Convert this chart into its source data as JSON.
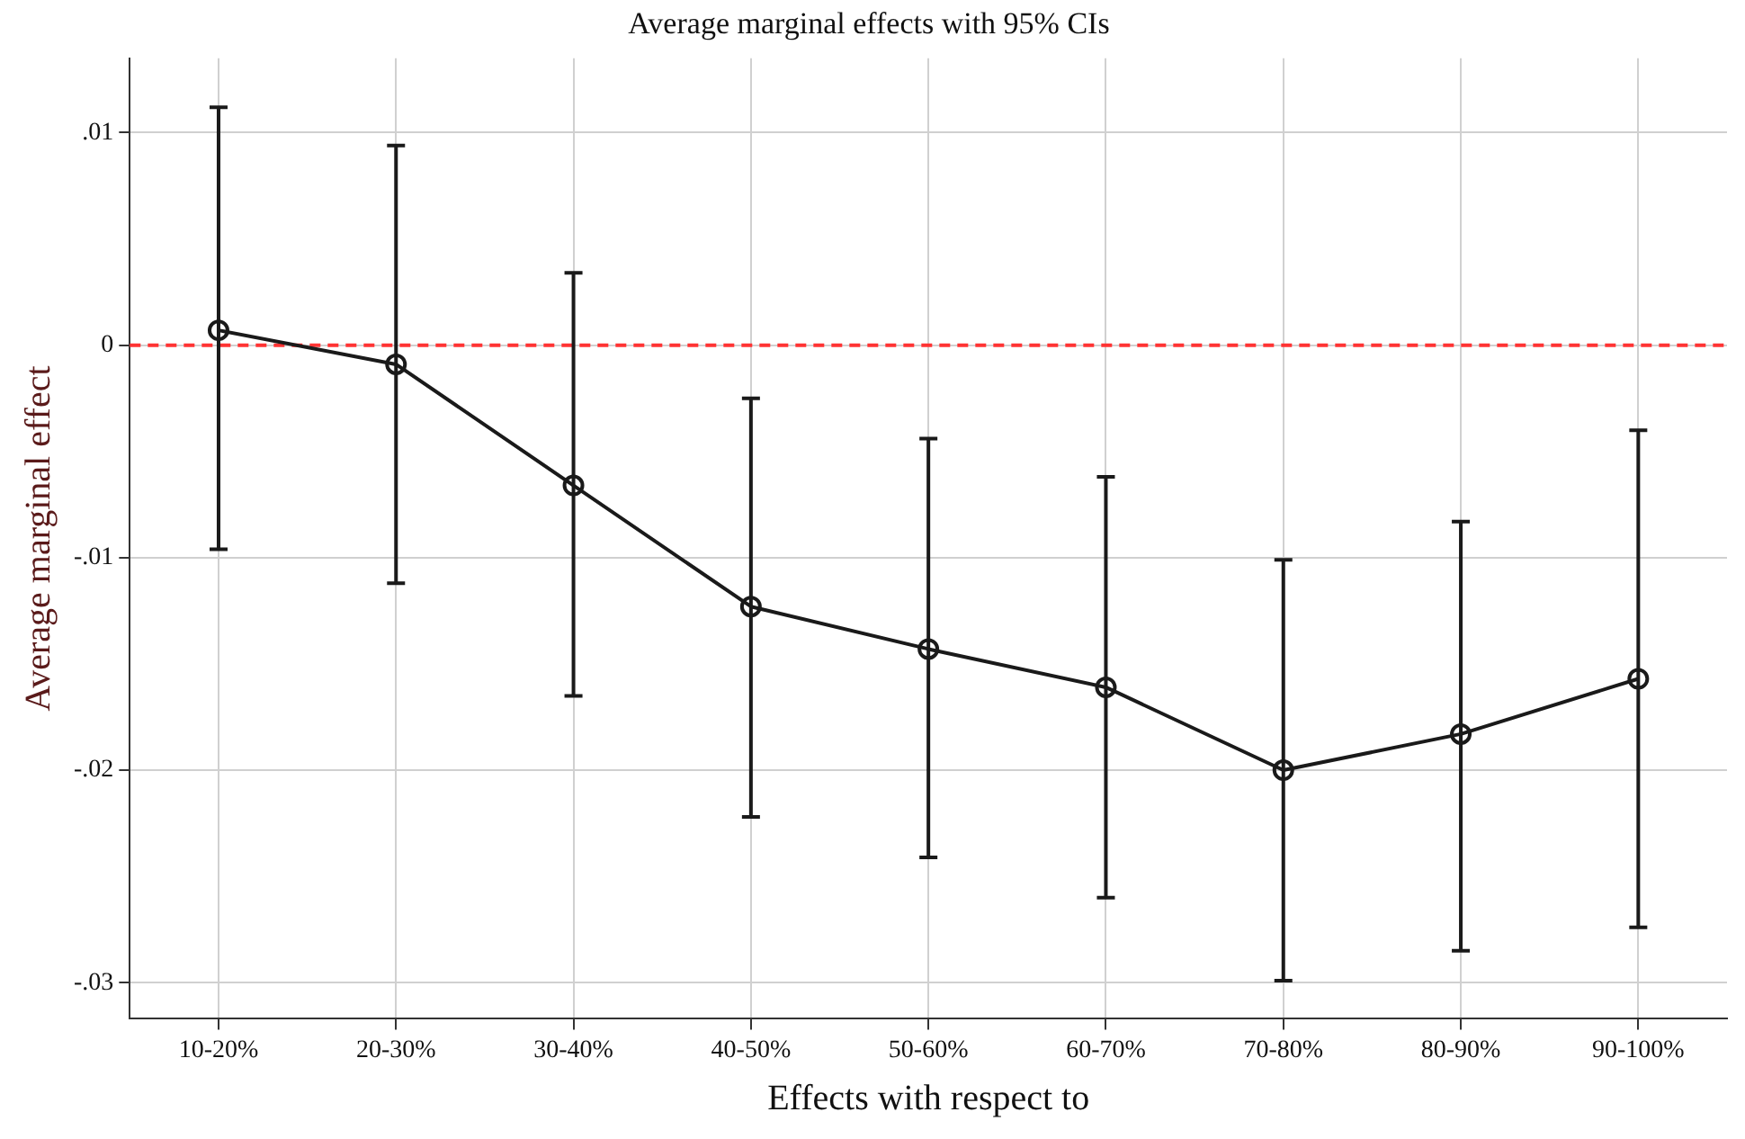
{
  "chart_data": {
    "type": "line",
    "title": "Average marginal effects with 95% CIs",
    "xlabel": "Effects with respect to",
    "ylabel": "Average marginal effect",
    "categories": [
      "10-20%",
      "20-30%",
      "30-40%",
      "40-50%",
      "50-60%",
      "60-70%",
      "70-80%",
      "80-90%",
      "90-100%"
    ],
    "series": [
      {
        "color": "#1a1a1a",
        "values": [
          0.0007,
          -0.0009,
          -0.0066,
          -0.0123,
          -0.0143,
          -0.0161,
          -0.02,
          -0.0183,
          -0.0157
        ],
        "errors": [
          [
            -0.0096,
            0.0112
          ],
          [
            -0.0112,
            0.0094
          ],
          [
            -0.0165,
            0.0034
          ],
          [
            -0.0222,
            -0.0025
          ],
          [
            -0.0241,
            -0.0044
          ],
          [
            -0.026,
            -0.0062
          ],
          [
            -0.0299,
            -0.0101
          ],
          [
            -0.0285,
            -0.0083
          ],
          [
            -0.0274,
            -0.004
          ]
        ]
      }
    ],
    "ylim": [
      -0.0317,
      0.0135
    ],
    "yticks": [
      {
        "value": -0.03,
        "label": "-.03"
      },
      {
        "value": -0.02,
        "label": "-.02"
      },
      {
        "value": -0.01,
        "label": "-.01"
      },
      0,
      {
        "value": 0.01,
        "label": ".01"
      }
    ],
    "ref_lines": [
      {
        "axis": "y",
        "value": 0,
        "color": "#ff3333",
        "line_style": "dashed"
      }
    ],
    "grid": true,
    "marker": "circle",
    "line_style": "solid",
    "legend": false
  }
}
